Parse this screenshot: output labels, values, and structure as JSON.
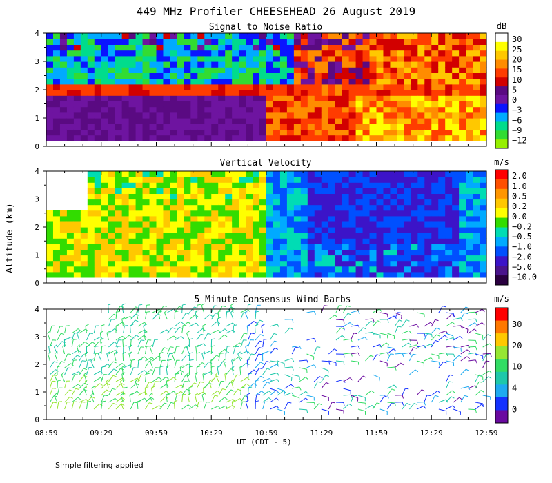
{
  "title": "449 MHz Profiler CHEESEHEAD 26 August 2019",
  "ylabel": "Altitude (km)",
  "xlabel": "UT  (CDT - 5)",
  "note": "Simple filtering applied",
  "x_ticks": [
    "08:59",
    "09:29",
    "09:59",
    "10:29",
    "10:59",
    "11:29",
    "11:59",
    "12:29",
    "12:59"
  ],
  "y_ticks": [
    "0",
    "1",
    "2",
    "3",
    "4"
  ],
  "chart_data": [
    {
      "type": "heatmap",
      "title": "Signal to Noise Ratio",
      "unit": "dB",
      "x_range": [
        "08:59",
        "12:59"
      ],
      "ylim": [
        0,
        4
      ],
      "colorbar": {
        "labels": [
          "30",
          "25",
          "20",
          "15",
          "10",
          "5",
          "0",
          "−3",
          "−6",
          "−9",
          "−12"
        ],
        "colors": [
          "#ffffff",
          "#ffff00",
          "#ffc800",
          "#ff8c00",
          "#ff3c00",
          "#d20000",
          "#5a0a82",
          "#6e14a0",
          "#0a14ff",
          "#00aaff",
          "#00dc8c",
          "#32dc32",
          "#96f000"
        ]
      },
      "layers_km": [
        {
          "from": 0.3,
          "to": 1.9,
          "level_dB": "0 to 5 (early), 10 to 25 (after 11:00)"
        },
        {
          "from": 1.9,
          "to": 2.2,
          "level_dB": "10"
        },
        {
          "from": 2.2,
          "to": 4.0,
          "level_dB": "-12 to 0 (early), 5 to 15 (after 11:45)"
        }
      ]
    },
    {
      "type": "heatmap",
      "title": "Vertical Velocity",
      "unit": "m/s",
      "x_range": [
        "08:59",
        "12:59"
      ],
      "ylim": [
        0,
        4
      ],
      "colorbar": {
        "labels": [
          "2.0",
          "1.0",
          "0.5",
          "0.2",
          "0.0",
          "−0.2",
          "−0.5",
          "−1.0",
          "−2.0",
          "−5.0",
          "−10.0"
        ],
        "colors": [
          "#ff0000",
          "#ff5000",
          "#ff9600",
          "#ffc800",
          "#ffff00",
          "#32dc00",
          "#00dcb4",
          "#00aaff",
          "#0050ff",
          "#3c14c8",
          "#4a148c",
          "#2a0040"
        ]
      },
      "regimes": [
        {
          "from": "08:59",
          "to": "10:59",
          "velocity_m_s": "0.0 to 0.2"
        },
        {
          "from": "10:59",
          "to": "11:29",
          "velocity_m_s": "-0.5 to -1.0"
        },
        {
          "from": "11:29",
          "to": "12:59",
          "velocity_m_s": "-2.0 to -5.0"
        }
      ]
    },
    {
      "type": "scatter",
      "title": "5 Minute Consensus Wind Barbs",
      "unit": "m/s",
      "x_range": [
        "08:59",
        "12:59"
      ],
      "ylim": [
        0,
        4
      ],
      "colorbar": {
        "labels": [
          "30",
          "20",
          "10",
          "4",
          "0"
        ],
        "colors": [
          "#ff0000",
          "#ff7800",
          "#ffc800",
          "#96e632",
          "#32dc64",
          "#1ec8aa",
          "#1eaaf0",
          "#1432ff",
          "#6a0aa0"
        ]
      },
      "coverage": [
        {
          "from": "08:59",
          "to": "10:59",
          "altitude_km": [
            0.3,
            4.0
          ]
        },
        {
          "from": "10:59",
          "to": "12:59",
          "altitude_km": [
            0.3,
            4.0
          ],
          "gaps": "partial"
        }
      ]
    }
  ]
}
